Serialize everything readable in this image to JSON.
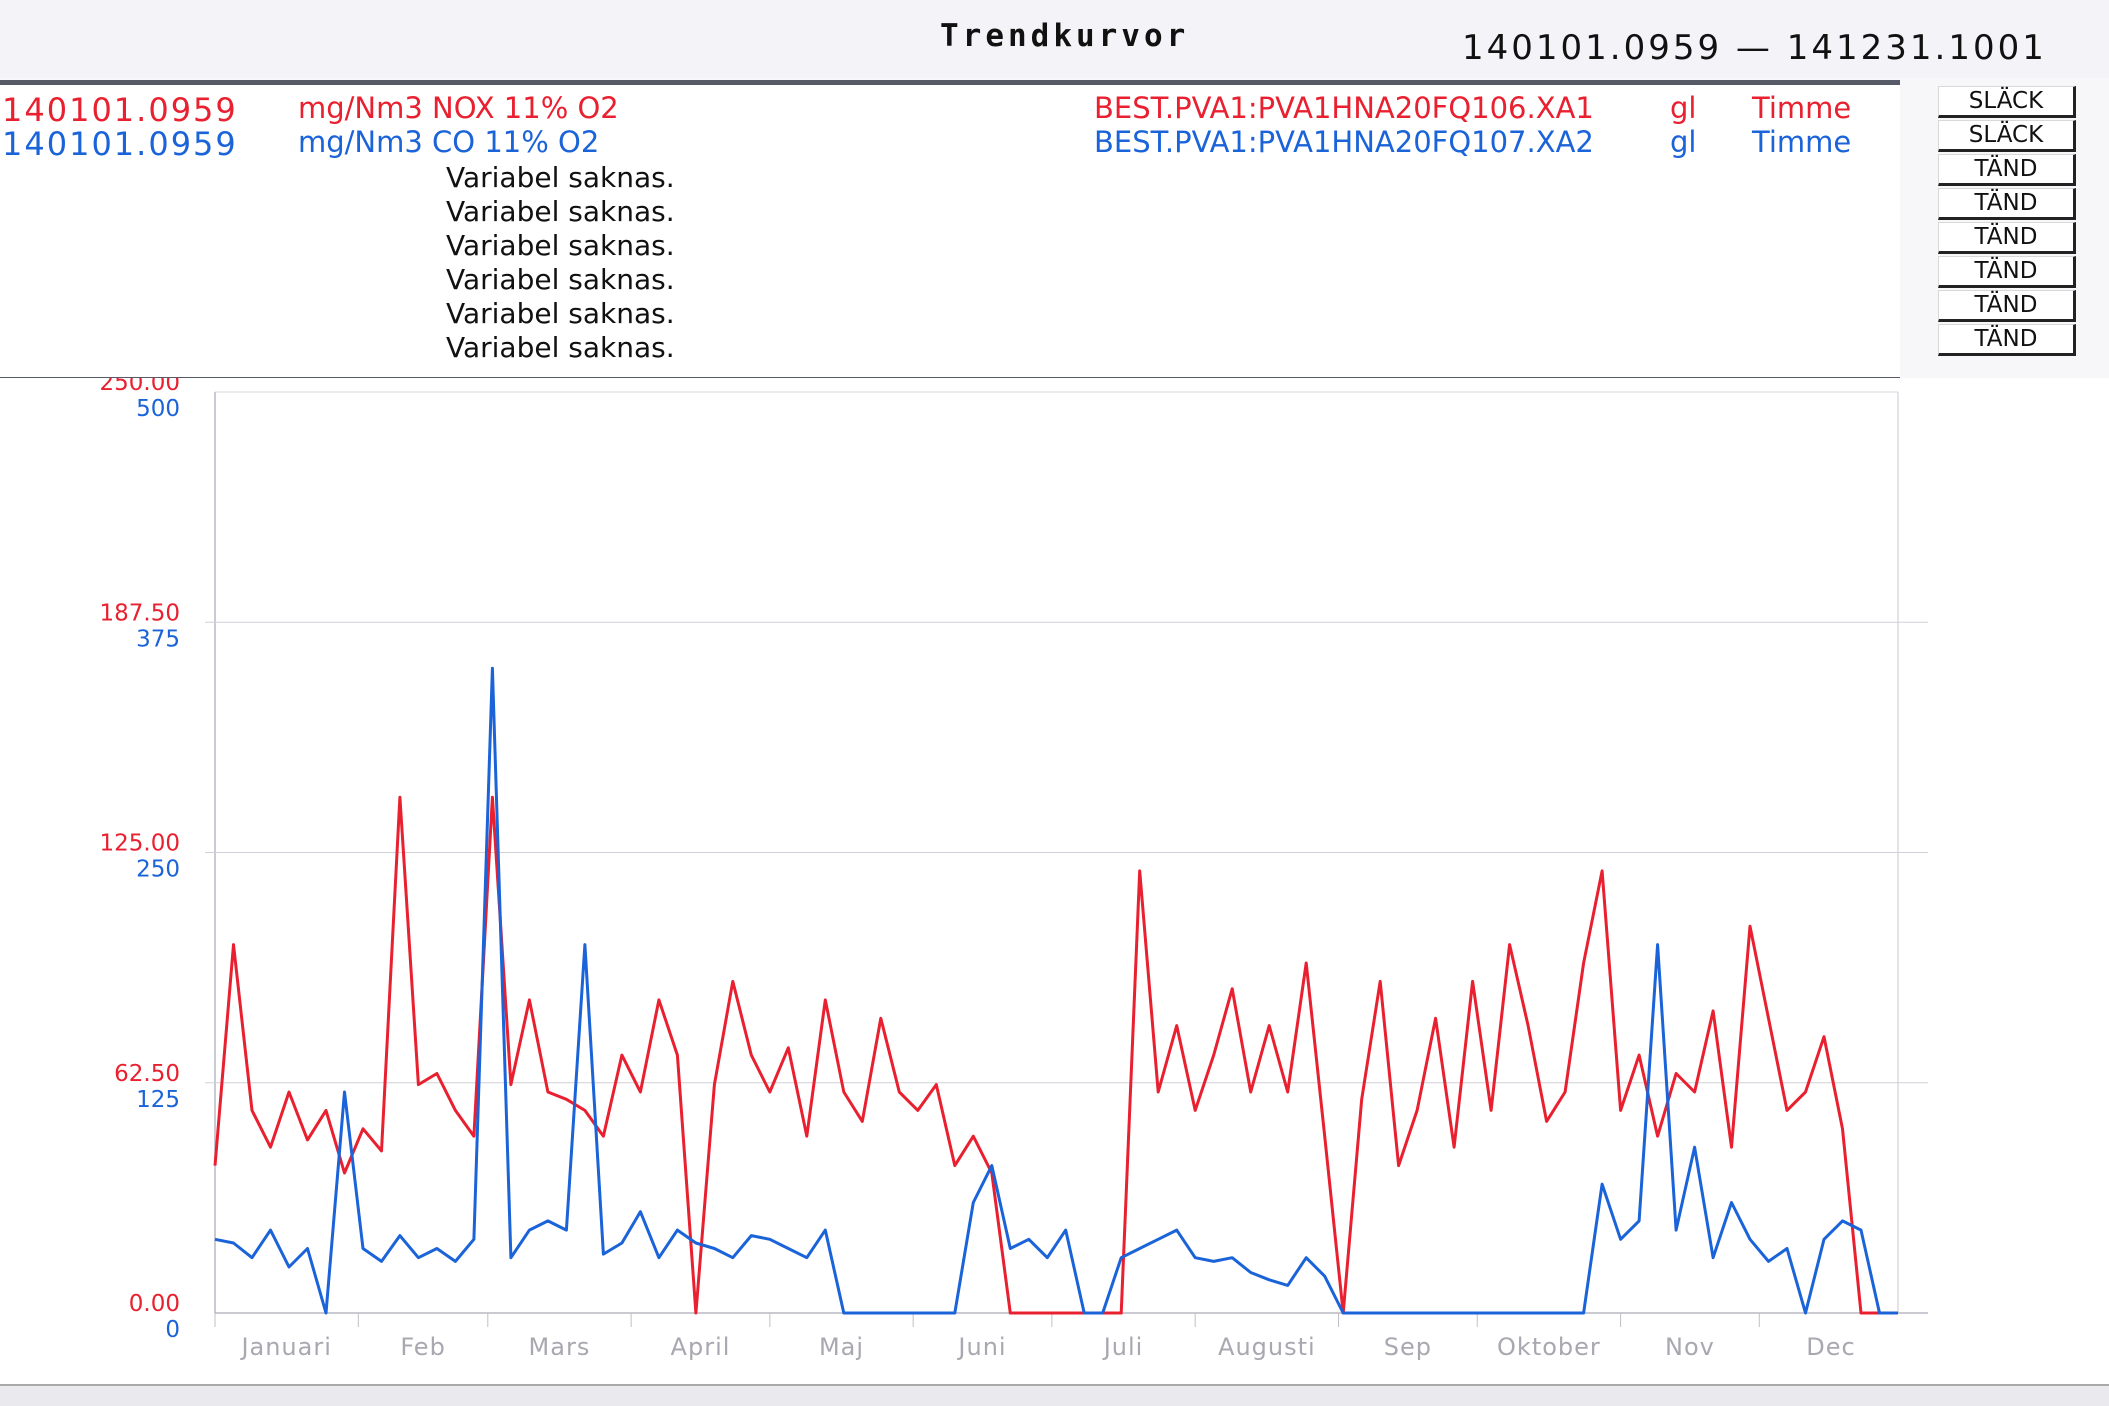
{
  "header": {
    "title": "Trendkurvor",
    "time_range": "140101.0959  —  141231.1001"
  },
  "legend": {
    "series": [
      {
        "time": "140101.0959",
        "unit": "mg/Nm3 NOX 11% O2",
        "tag": "BEST.PVA1:PVA1HNA20FQ106.XA1",
        "agg": "gl",
        "resolution": "Timme",
        "color": "#e8202f"
      },
      {
        "time": "140101.0959",
        "unit": "mg/Nm3 CO 11% O2",
        "tag": "BEST.PVA1:PVA1HNA20FQ107.XA2",
        "agg": "gl",
        "resolution": "Timme",
        "color": "#1a63d8"
      }
    ],
    "missing_label": "Variabel saknas.",
    "missing_rows": [
      "Variabel saknas.",
      "Variabel saknas.",
      "Variabel saknas.",
      "Variabel saknas.",
      "Variabel saknas.",
      "Variabel saknas."
    ]
  },
  "buttons": [
    "SLÄCK",
    "SLÄCK",
    "TÄND",
    "TÄND",
    "TÄND",
    "TÄND",
    "TÄND",
    "TÄND"
  ],
  "colors": {
    "nox": "#e8202f",
    "co": "#1a63d8",
    "grid": "#c8c8d0"
  },
  "chart_data": {
    "type": "line",
    "x_start": "140101.0959",
    "x_end": "141231.1001",
    "x_tick_labels": [
      "Januari",
      "Feb",
      "Mars",
      "April",
      "Maj",
      "Juni",
      "Juli",
      "Augusti",
      "Sep",
      "Oktober",
      "Nov",
      "Dec"
    ],
    "y_left_ticks": [
      "250.00",
      "187.50",
      "125.00",
      "62.50",
      "0.00"
    ],
    "y_right_ticks": [
      "500",
      "375",
      "250",
      "125",
      "0"
    ],
    "y_left_lim": [
      0,
      250
    ],
    "y_right_lim": [
      0,
      500
    ],
    "grid": true,
    "series": [
      {
        "name": "mg/Nm3 NOX 11% O2",
        "color": "#e8202f",
        "axis": "left",
        "day": [
          0,
          4,
          8,
          12,
          16,
          20,
          24,
          28,
          32,
          36,
          40,
          44,
          48,
          52,
          56,
          60,
          64,
          68,
          72,
          76,
          80,
          84,
          88,
          92,
          96,
          100,
          104,
          108,
          112,
          116,
          120,
          124,
          128,
          132,
          136,
          140,
          144,
          148,
          152,
          156,
          160,
          164,
          168,
          172,
          176,
          180,
          184,
          188,
          192,
          196,
          200,
          204,
          208,
          212,
          216,
          220,
          224,
          228,
          232,
          236,
          240,
          244,
          248,
          252,
          256,
          260,
          264,
          268,
          272,
          276,
          280,
          284,
          288,
          292,
          296,
          300,
          304,
          308,
          312,
          316,
          320,
          324,
          328,
          332,
          336,
          340,
          344,
          348,
          352,
          356,
          360,
          364
        ],
        "values": [
          40,
          100,
          55,
          45,
          60,
          47,
          55,
          38,
          50,
          44,
          140,
          62,
          65,
          55,
          48,
          140,
          62,
          85,
          60,
          58,
          55,
          48,
          70,
          60,
          85,
          70,
          0,
          62,
          90,
          70,
          60,
          72,
          48,
          85,
          60,
          52,
          80,
          60,
          55,
          62,
          40,
          48,
          38,
          0,
          0,
          0,
          0,
          0,
          0,
          0,
          120,
          60,
          78,
          55,
          70,
          88,
          60,
          78,
          60,
          95,
          48,
          0,
          58,
          90,
          40,
          55,
          80,
          45,
          90,
          55,
          100,
          78,
          52,
          60,
          95,
          120,
          55,
          70,
          48,
          65,
          60,
          82,
          45,
          105,
          80,
          55,
          60,
          75,
          50,
          0,
          0,
          0
        ]
      },
      {
        "name": "mg/Nm3 CO 11% O2",
        "color": "#1a63d8",
        "axis": "right",
        "day": [
          0,
          4,
          8,
          12,
          16,
          20,
          24,
          28,
          32,
          36,
          40,
          44,
          48,
          52,
          56,
          60,
          64,
          68,
          72,
          76,
          80,
          84,
          88,
          92,
          96,
          100,
          104,
          108,
          112,
          116,
          120,
          124,
          128,
          132,
          136,
          140,
          144,
          148,
          152,
          156,
          160,
          164,
          168,
          172,
          176,
          180,
          184,
          188,
          192,
          196,
          200,
          204,
          208,
          212,
          216,
          220,
          224,
          228,
          232,
          236,
          240,
          244,
          248,
          252,
          256,
          260,
          264,
          268,
          272,
          276,
          280,
          284,
          288,
          292,
          296,
          300,
          304,
          308,
          312,
          316,
          320,
          324,
          328,
          332,
          336,
          340,
          344,
          348,
          352,
          356,
          360,
          364
        ],
        "values": [
          40,
          38,
          30,
          45,
          25,
          35,
          0,
          120,
          35,
          28,
          42,
          30,
          35,
          28,
          40,
          350,
          30,
          45,
          50,
          45,
          200,
          32,
          38,
          55,
          30,
          45,
          38,
          35,
          30,
          42,
          40,
          35,
          30,
          45,
          0,
          0,
          0,
          0,
          0,
          0,
          0,
          60,
          80,
          35,
          40,
          30,
          45,
          0,
          0,
          30,
          35,
          40,
          45,
          30,
          28,
          30,
          22,
          18,
          15,
          30,
          20,
          0,
          0,
          0,
          0,
          0,
          0,
          0,
          0,
          0,
          0,
          0,
          0,
          0,
          0,
          70,
          40,
          50,
          200,
          45,
          90,
          30,
          60,
          40,
          28,
          35,
          0,
          40,
          50,
          45,
          0,
          0
        ]
      }
    ]
  }
}
